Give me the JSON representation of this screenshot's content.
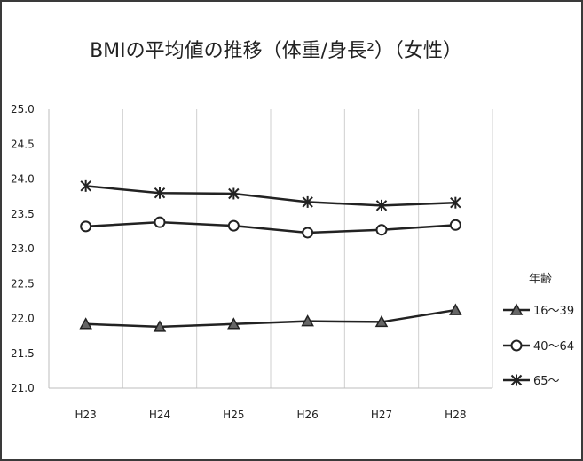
{
  "chart_data": {
    "type": "line",
    "title": "BMIの平均値の推移（体重/身長²）（女性）",
    "categories": [
      "H23",
      "H24",
      "H25",
      "H26",
      "H27",
      "H28"
    ],
    "y_ticks": [
      "25.0",
      "24.5",
      "24.0",
      "23.5",
      "23.0",
      "22.5",
      "22.0",
      "21.5",
      "21.0"
    ],
    "ylim": [
      21.0,
      25.0
    ],
    "grid": "vertical",
    "legend_position": "right",
    "legend_title": "年齢",
    "series": [
      {
        "name": "16～39",
        "marker": "triangle",
        "values": [
          21.92,
          21.88,
          21.92,
          21.96,
          21.95,
          22.12
        ]
      },
      {
        "name": "40～64",
        "marker": "circle",
        "values": [
          23.32,
          23.38,
          23.33,
          23.23,
          23.27,
          23.34
        ]
      },
      {
        "name": "65～",
        "marker": "star",
        "values": [
          23.9,
          23.8,
          23.79,
          23.67,
          23.62,
          23.66
        ]
      }
    ],
    "colors": {
      "line": "#222222",
      "grid": "#cfcfcf",
      "frame": "#3a3a3a"
    }
  }
}
